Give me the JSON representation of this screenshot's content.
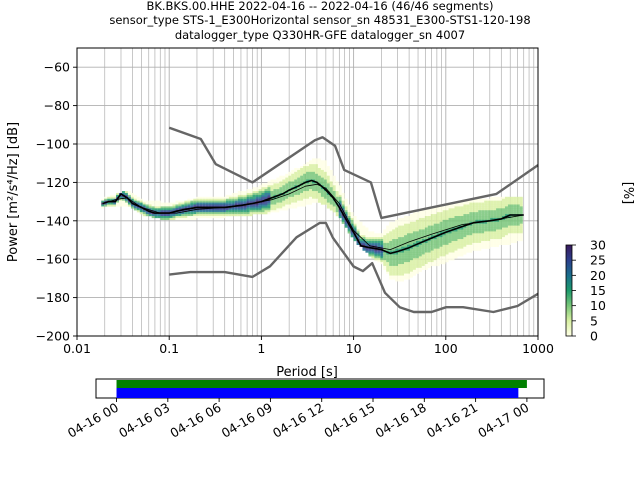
{
  "title_lines": [
    "BK.BKS.00.HHE   2022-04-16 -- 2022-04-16  (46/46 segments)",
    "sensor_type STS-1_E300Horizontal sensor_sn 48531_E300-STS1-120-198",
    "datalogger_type Q330HR-GFE datalogger_sn 4007"
  ],
  "colorbar": {
    "label": "[%]",
    "ticks": [
      "0",
      "5",
      "10",
      "15",
      "20",
      "25",
      "30"
    ],
    "range": [
      0,
      30
    ],
    "colors": [
      "#ffffe5",
      "#d9f0a3",
      "#78c679",
      "#1d9a6c",
      "#1a6e8c",
      "#2c3f8c",
      "#3a1a5c"
    ]
  },
  "chart_data": {
    "type": "heatmap",
    "title": "BK.BKS.00.HHE   2022-04-16 -- 2022-04-16  (46/46 segments)",
    "xlabel": "Period [s]",
    "ylabel": "Power [m²/s⁴/Hz] [dB]",
    "xscale": "log",
    "xlim": [
      0.01,
      1000
    ],
    "ylim": [
      -200,
      -50
    ],
    "x_ticks": [
      "0.01",
      "0.1",
      "1",
      "10",
      "100",
      "1000"
    ],
    "y_ticks": [
      "−60",
      "−80",
      "−100",
      "−120",
      "−140",
      "−160",
      "−180",
      "−200"
    ],
    "grid": true,
    "series": [
      {
        "role": "mode",
        "color": "#000000",
        "x": [
          0.019,
          0.022,
          0.026,
          0.03,
          0.035,
          0.04,
          0.05,
          0.06,
          0.07,
          0.08,
          0.1,
          0.12,
          0.15,
          0.2,
          0.3,
          0.4,
          0.6,
          0.8,
          1,
          1.3,
          1.7,
          2,
          2.5,
          3,
          3.5,
          4,
          4.5,
          5,
          6,
          7,
          8,
          10,
          12,
          15,
          20,
          25,
          30,
          40,
          50,
          70,
          100,
          150,
          200,
          300,
          400,
          500,
          700
        ],
        "y": [
          -131,
          -130,
          -130,
          -126,
          -128,
          -131,
          -133,
          -135,
          -136,
          -136,
          -136,
          -135,
          -134,
          -133,
          -133,
          -133,
          -132,
          -131,
          -130,
          -128,
          -126,
          -124,
          -122,
          -120,
          -119,
          -120,
          -122,
          -124,
          -128,
          -133,
          -138,
          -146,
          -153,
          -154,
          -155,
          -157,
          -156,
          -154,
          -152,
          -149,
          -146,
          -143,
          -141,
          -140,
          -139,
          -137,
          -137
        ]
      },
      {
        "role": "mean",
        "color": "#000000",
        "x": [
          0.019,
          0.026,
          0.035,
          0.05,
          0.08,
          0.12,
          0.2,
          0.4,
          0.8,
          1.3,
          2,
          3,
          4,
          5,
          7,
          10,
          15,
          25,
          40,
          70,
          150,
          300,
          700
        ],
        "y": [
          -131,
          -129,
          -128,
          -133,
          -136,
          -136,
          -134,
          -133,
          -131,
          -129,
          -126,
          -122,
          -121,
          -123,
          -131,
          -145,
          -153,
          -155,
          -151,
          -147,
          -142,
          -140,
          -137
        ]
      },
      {
        "role": "new-high-noise-model",
        "color": "#666666",
        "x": [
          0.1,
          0.22,
          0.32,
          0.8,
          3.8,
          4.6,
          6.3,
          7.9,
          15.4,
          20,
          354.8,
          1000
        ],
        "y": [
          -91.5,
          -97.4,
          -110.5,
          -120,
          -98,
          -96.5,
          -101,
          -113.5,
          -120,
          -138.5,
          -126,
          -111
        ]
      },
      {
        "role": "new-low-noise-model",
        "color": "#666666",
        "x": [
          0.1,
          0.17,
          0.4,
          0.8,
          1.24,
          2.4,
          4.3,
          5,
          6,
          10,
          12.6,
          15.9,
          21.9,
          31.6,
          45,
          70,
          101,
          154,
          328,
          600,
          1000
        ],
        "y": [
          -168,
          -166.7,
          -166.7,
          -169.2,
          -163.7,
          -148.6,
          -141.1,
          -141.1,
          -149,
          -163.8,
          -166.2,
          -162.1,
          -177.5,
          -185,
          -187.5,
          -187.5,
          -185,
          -185,
          -187.5,
          -184.4,
          -178
        ]
      }
    ],
    "density_band": {
      "x": [
        0.019,
        0.026,
        0.035,
        0.05,
        0.08,
        0.12,
        0.2,
        0.4,
        0.8,
        1.3,
        2,
        3,
        4,
        5,
        7,
        10,
        15,
        20,
        25,
        30,
        40,
        50,
        70,
        100,
        150,
        200,
        300,
        500,
        700
      ],
      "lower": [
        -133,
        -132,
        -132,
        -137,
        -139,
        -139,
        -139,
        -138,
        -137,
        -136,
        -134,
        -132,
        -130,
        -132,
        -138,
        -150,
        -158,
        -162,
        -170,
        -172,
        -170,
        -167,
        -164,
        -162,
        -158,
        -156,
        -154,
        -152,
        -150
      ],
      "upper": [
        -129,
        -127,
        -125,
        -130,
        -131,
        -131,
        -129,
        -128,
        -124,
        -120,
        -116,
        -111,
        -108,
        -110,
        -122,
        -138,
        -146,
        -148,
        -142,
        -140,
        -138,
        -136,
        -134,
        -133,
        -131,
        -130,
        -129,
        -128,
        -128
      ]
    },
    "time_axis": {
      "ticks": [
        "04-16 00",
        "04-16 03",
        "04-16 06",
        "04-16 09",
        "04-16 12",
        "04-16 15",
        "04-16 18",
        "04-16 21",
        "04-17 00"
      ],
      "xlim_hours": [
        -1.2,
        25
      ],
      "data_coverage_hours": [
        0,
        24
      ],
      "used_coverage_hours": [
        0,
        23.5
      ],
      "coverage_color": "#008000",
      "used_color": "#0000ff"
    }
  }
}
